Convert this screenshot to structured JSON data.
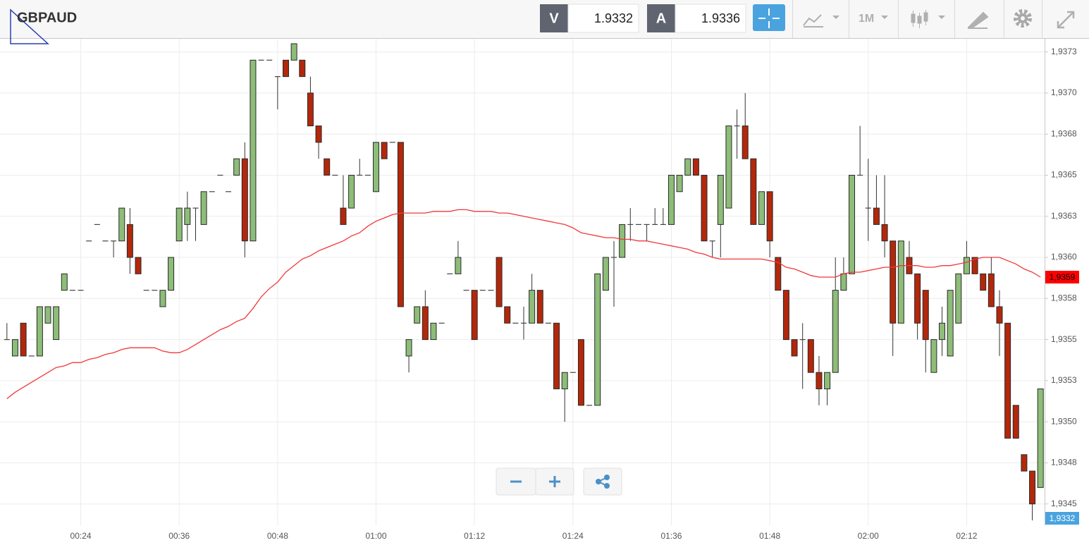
{
  "toolbar": {
    "symbol": "GBPAUD",
    "bid_label": "V",
    "bid": "1.9332",
    "ask_label": "A",
    "ask": "1.9336",
    "timeframe": "1M"
  },
  "chart_data": {
    "type": "candlestick",
    "categories": [
      null,
      null,
      null,
      null,
      null,
      null,
      null,
      null,
      null,
      "00:24",
      null,
      null,
      null,
      null,
      null,
      null,
      null,
      null,
      null,
      null,
      null,
      "00:36",
      null,
      null,
      null,
      null,
      null,
      null,
      null,
      null,
      null,
      null,
      null,
      "00:48",
      null,
      null,
      null,
      null,
      null,
      null,
      null,
      null,
      null,
      null,
      null,
      "01:00",
      null,
      null,
      null,
      null,
      null,
      null,
      null,
      null,
      null,
      null,
      null,
      "01:12",
      null,
      null,
      null,
      null,
      null,
      null,
      null,
      null,
      null,
      null,
      null,
      "01:24",
      null,
      null,
      null,
      null,
      null,
      null,
      null,
      null,
      null,
      null,
      null,
      "01:36",
      null,
      null,
      null,
      null,
      null,
      null,
      null,
      null,
      null,
      null,
      null,
      "01:48",
      null,
      null,
      null,
      null,
      null,
      null,
      null,
      null,
      null,
      null,
      null,
      "02:00",
      null,
      null,
      null,
      null,
      null,
      null,
      null,
      null,
      null,
      null,
      null,
      "02:12",
      null,
      null,
      null,
      null,
      null,
      null,
      null,
      null,
      null
    ],
    "open": [
      1.9355,
      1.9354,
      1.9356,
      1.9354,
      1.9354,
      1.9356,
      1.9355,
      1.9358,
      1.9358,
      1.9358,
      1.9361,
      1.9362,
      1.9361,
      1.9361,
      1.9361,
      1.9362,
      1.936,
      1.9358,
      1.9358,
      1.9357,
      1.9358,
      1.9361,
      1.9362,
      1.9363,
      1.9362,
      1.9364,
      1.9365,
      1.9364,
      1.9365,
      1.9366,
      1.9361,
      1.9372,
      1.9372,
      1.9371,
      1.9372,
      1.9372,
      1.9372,
      1.937,
      1.9368,
      1.9366,
      1.9365,
      1.9363,
      1.9363,
      1.9365,
      1.9365,
      1.9364,
      1.9367,
      1.9367,
      1.9367,
      1.9354,
      1.9356,
      1.9357,
      1.9355,
      1.9356,
      1.9359,
      1.9359,
      1.9358,
      1.9358,
      1.9358,
      1.9358,
      1.936,
      1.9357,
      1.9356,
      1.9356,
      1.9356,
      1.9358,
      1.9356,
      1.9356,
      1.9352,
      1.9353,
      1.9355,
      1.9351,
      1.9351,
      1.9358,
      1.936,
      1.936,
      1.9362,
      1.9362,
      1.9362,
      1.9362,
      1.9362,
      1.9362,
      1.9364,
      1.9365,
      1.9366,
      1.9365,
      1.9361,
      1.9362,
      1.9363,
      1.9368,
      1.9368,
      1.9366,
      1.9362,
      1.9364,
      1.936,
      1.9358,
      1.9355,
      1.9355,
      1.9355,
      1.9353,
      1.9352,
      1.9353,
      1.9358,
      1.9359,
      1.9365,
      1.9363,
      1.9363,
      1.9362,
      1.9361,
      1.9356,
      1.936,
      1.9359,
      1.9358,
      1.9353,
      1.9355,
      1.9354,
      1.9356,
      1.9359,
      1.936,
      1.9359,
      1.9359,
      1.9357,
      1.9356,
      1.9351,
      1.9348,
      1.9347,
      1.9346
    ],
    "high": [
      1.9356,
      1.9355,
      1.9356,
      1.9354,
      1.9357,
      1.9357,
      1.9357,
      1.9359,
      1.9358,
      1.9358,
      1.9361,
      1.9362,
      1.9361,
      1.9361,
      1.9363,
      1.9363,
      1.936,
      1.9358,
      1.9358,
      1.9358,
      1.936,
      1.9363,
      1.9364,
      1.9363,
      1.9364,
      1.9364,
      1.9365,
      1.9364,
      1.9366,
      1.9367,
      1.9372,
      1.9372,
      1.9372,
      1.9371,
      1.9372,
      1.9373,
      1.9372,
      1.9371,
      1.9368,
      1.9366,
      1.9365,
      1.9365,
      1.9365,
      1.9366,
      1.9365,
      1.9367,
      1.9367,
      1.9367,
      1.9367,
      1.9355,
      1.9357,
      1.9358,
      1.9356,
      1.9356,
      1.9359,
      1.9361,
      1.9358,
      1.9358,
      1.9358,
      1.9358,
      1.936,
      1.9357,
      1.9356,
      1.9357,
      1.9359,
      1.9358,
      1.9356,
      1.9356,
      1.9353,
      1.9353,
      1.9355,
      1.9351,
      1.9359,
      1.936,
      1.9361,
      1.9362,
      1.9363,
      1.9362,
      1.9362,
      1.9363,
      1.9363,
      1.9365,
      1.9365,
      1.9366,
      1.9366,
      1.9365,
      1.9361,
      1.9365,
      1.9368,
      1.9369,
      1.937,
      1.9366,
      1.9364,
      1.9364,
      1.936,
      1.9358,
      1.9355,
      1.9356,
      1.9355,
      1.9354,
      1.9353,
      1.936,
      1.936,
      1.9365,
      1.9368,
      1.9366,
      1.9365,
      1.9365,
      1.9361,
      1.9361,
      1.9361,
      1.9359,
      1.9358,
      1.9355,
      1.9357,
      1.9358,
      1.9359,
      1.9361,
      1.936,
      1.9359,
      1.936,
      1.9358,
      1.9356,
      1.9351,
      1.9348,
      1.9347,
      1.9352
    ],
    "low": [
      1.9355,
      1.9354,
      1.9354,
      1.9354,
      1.9354,
      1.9356,
      1.9355,
      1.9358,
      1.9358,
      1.9358,
      1.9361,
      1.9362,
      1.9361,
      1.936,
      1.9361,
      1.9359,
      1.9359,
      1.9358,
      1.9358,
      1.9357,
      1.9358,
      1.9361,
      1.9361,
      1.9361,
      1.9362,
      1.9364,
      1.9365,
      1.9364,
      1.9365,
      1.936,
      1.9361,
      1.9372,
      1.9372,
      1.9369,
      1.9371,
      1.9372,
      1.9371,
      1.9368,
      1.9366,
      1.9365,
      1.9365,
      1.9362,
      1.9363,
      1.9365,
      1.9365,
      1.9364,
      1.9366,
      1.9367,
      1.9357,
      1.9353,
      1.9356,
      1.9355,
      1.9355,
      1.9356,
      1.9359,
      1.9359,
      1.9358,
      1.9355,
      1.9358,
      1.9358,
      1.9357,
      1.9356,
      1.9356,
      1.9355,
      1.9356,
      1.9356,
      1.9356,
      1.9352,
      1.935,
      1.9353,
      1.9351,
      1.9351,
      1.9351,
      1.9358,
      1.9357,
      1.936,
      1.9361,
      1.9362,
      1.9361,
      1.9362,
      1.9362,
      1.9362,
      1.9364,
      1.9365,
      1.9365,
      1.9361,
      1.936,
      1.936,
      1.9363,
      1.9366,
      1.9366,
      1.9362,
      1.9362,
      1.936,
      1.9358,
      1.9355,
      1.9354,
      1.9352,
      1.9353,
      1.9351,
      1.9351,
      1.9353,
      1.9358,
      1.9359,
      1.9365,
      1.9361,
      1.9362,
      1.936,
      1.9354,
      1.9356,
      1.9359,
      1.9355,
      1.9353,
      1.9353,
      1.9354,
      1.9354,
      1.9356,
      1.9359,
      1.9359,
      1.9358,
      1.9357,
      1.9354,
      1.9349,
      1.9349,
      1.9347,
      1.9344,
      1.9346
    ],
    "close": [
      1.9355,
      1.9355,
      1.9354,
      1.9354,
      1.9357,
      1.9357,
      1.9357,
      1.9359,
      1.9358,
      1.9358,
      1.9361,
      1.9362,
      1.9361,
      1.9361,
      1.9363,
      1.936,
      1.9359,
      1.9358,
      1.9358,
      1.9358,
      1.936,
      1.9363,
      1.9363,
      1.9363,
      1.9364,
      1.9364,
      1.9365,
      1.9364,
      1.9366,
      1.9361,
      1.9372,
      1.9372,
      1.9372,
      1.9371,
      1.9371,
      1.9373,
      1.9371,
      1.9368,
      1.9367,
      1.9365,
      1.9365,
      1.9362,
      1.9365,
      1.9365,
      1.9365,
      1.9367,
      1.9366,
      1.9367,
      1.9357,
      1.9355,
      1.9357,
      1.9355,
      1.9356,
      1.9356,
      1.9359,
      1.936,
      1.9358,
      1.9355,
      1.9358,
      1.9358,
      1.9357,
      1.9356,
      1.9356,
      1.9356,
      1.9358,
      1.9356,
      1.9356,
      1.9352,
      1.9353,
      1.9353,
      1.9351,
      1.9351,
      1.9359,
      1.936,
      1.936,
      1.9362,
      1.9362,
      1.9362,
      1.9362,
      1.9362,
      1.9362,
      1.9365,
      1.9365,
      1.9366,
      1.9365,
      1.9361,
      1.9361,
      1.9365,
      1.9368,
      1.9368,
      1.9366,
      1.9362,
      1.9364,
      1.9361,
      1.9358,
      1.9355,
      1.9354,
      1.9355,
      1.9353,
      1.9352,
      1.9353,
      1.9358,
      1.9359,
      1.9365,
      1.9365,
      1.9363,
      1.9362,
      1.9361,
      1.9356,
      1.9361,
      1.9359,
      1.9356,
      1.9355,
      1.9355,
      1.9356,
      1.9358,
      1.9359,
      1.936,
      1.9359,
      1.9358,
      1.9357,
      1.9356,
      1.9349,
      1.9349,
      1.9347,
      1.9345,
      1.9352
    ],
    "up_color": "#8dbd78",
    "down_color": "#b3270b",
    "doji_color": "#444444",
    "lines": [
      {
        "color": "#f0383a",
        "values": [
          1.93514,
          1.93518,
          1.93521,
          1.93524,
          1.93527,
          1.9353,
          1.93533,
          1.93534,
          1.93536,
          1.93536,
          1.93538,
          1.93539,
          1.93541,
          1.93542,
          1.93544,
          1.93545,
          1.93545,
          1.93545,
          1.93545,
          1.93543,
          1.93542,
          1.93542,
          1.93544,
          1.93547,
          1.9355,
          1.93553,
          1.93556,
          1.93558,
          1.93561,
          1.93563,
          1.93569,
          1.93576,
          1.93581,
          1.93585,
          1.93591,
          1.93595,
          1.93599,
          1.93601,
          1.93604,
          1.93606,
          1.93608,
          1.9361,
          1.93613,
          1.93615,
          1.93619,
          1.93622,
          1.93624,
          1.93626,
          1.93627,
          1.93627,
          1.93627,
          1.93627,
          1.93628,
          1.93628,
          1.93628,
          1.93629,
          1.93629,
          1.93628,
          1.93628,
          1.93628,
          1.93627,
          1.93627,
          1.93626,
          1.93625,
          1.93624,
          1.93623,
          1.93622,
          1.93621,
          1.9362,
          1.93618,
          1.93615,
          1.93614,
          1.93613,
          1.93612,
          1.93612,
          1.93611,
          1.93611,
          1.9361,
          1.9361,
          1.93609,
          1.93608,
          1.93607,
          1.93606,
          1.93605,
          1.93603,
          1.93602,
          1.936,
          1.93599,
          1.93599,
          1.93599,
          1.93599,
          1.93599,
          1.93599,
          1.93598,
          1.93597,
          1.93594,
          1.93593,
          1.93591,
          1.93589,
          1.93588,
          1.93588,
          1.93588,
          1.9359,
          1.93591,
          1.93591,
          1.93592,
          1.93593,
          1.93594,
          1.93594,
          1.93595,
          1.93595,
          1.93595,
          1.93594,
          1.93594,
          1.93595,
          1.93595,
          1.93596,
          1.93597,
          1.93599,
          1.936,
          1.936,
          1.936,
          1.93598,
          1.93596,
          1.93593,
          1.93591,
          1.93588
        ]
      }
    ],
    "price_tags": [
      {
        "label": "1,9359",
        "color": "#ff0000"
      },
      {
        "label": "1,9332",
        "color": "#4aa3df"
      }
    ],
    "ylim": [
      1.93437,
      1.93733
    ],
    "yticks": [
      {
        "value": 1.9345,
        "label": "1,9345"
      },
      {
        "value": 1.93475,
        "label": "1,9348"
      },
      {
        "value": 1.935,
        "label": "1,9350"
      },
      {
        "value": 1.93525,
        "label": "1,9353"
      },
      {
        "value": 1.9355,
        "label": "1,9355"
      },
      {
        "value": 1.93575,
        "label": "1,9358"
      },
      {
        "value": 1.936,
        "label": "1,9360"
      },
      {
        "value": 1.93625,
        "label": "1,9363"
      },
      {
        "value": 1.9365,
        "label": "1,9365"
      },
      {
        "value": 1.93675,
        "label": "1,9368"
      },
      {
        "value": 1.937,
        "label": "1,9370"
      },
      {
        "value": 1.93725,
        "label": "1,9373"
      }
    ],
    "grid": true
  }
}
